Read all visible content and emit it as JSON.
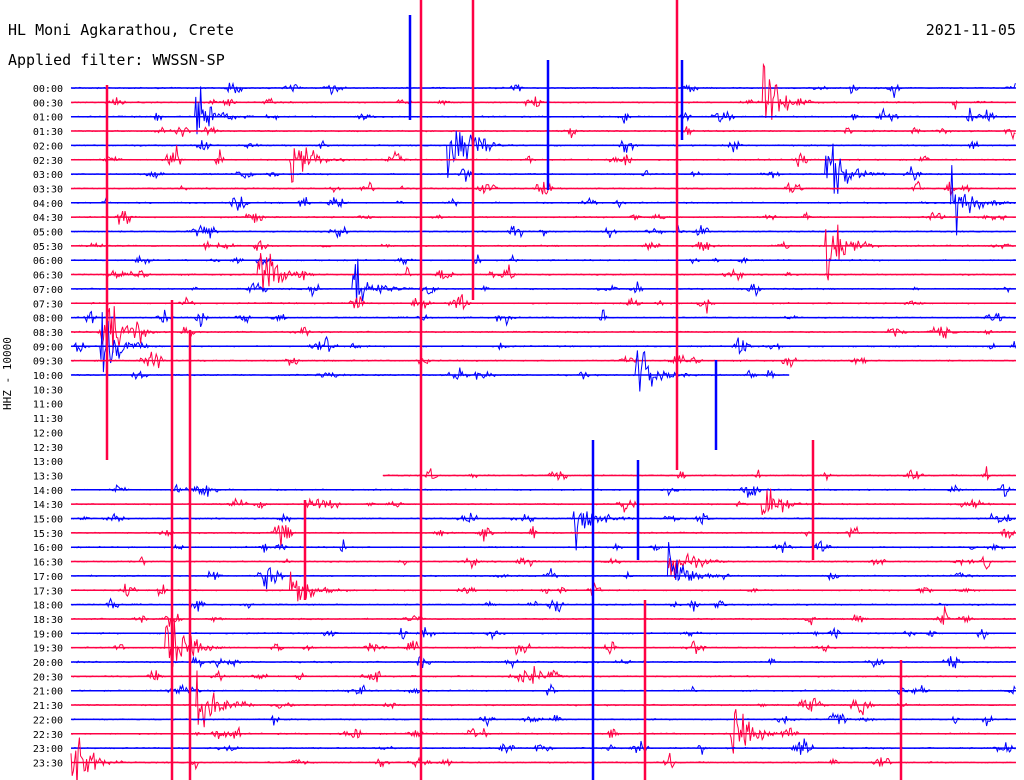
{
  "header": {
    "station": "HL Moni Agkarathou, Crete",
    "filter": "Applied filter: WWSSN-SP",
    "date": "2021-11-05"
  },
  "chart_data": {
    "type": "line",
    "title": "HL Moni Agkarathou, Crete",
    "subtitle": "Applied filter: WWSSN-SP",
    "date": "2021-11-05",
    "ylabel": "HHZ - 10000",
    "row_labels": [
      "00:00",
      "00:30",
      "01:00",
      "01:30",
      "02:00",
      "02:30",
      "03:00",
      "03:30",
      "04:00",
      "04:30",
      "05:00",
      "05:30",
      "06:00",
      "06:30",
      "07:00",
      "07:30",
      "08:00",
      "08:30",
      "09:00",
      "09:30",
      "10:00",
      "10:30",
      "11:00",
      "11:30",
      "12:00",
      "12:30",
      "13:00",
      "13:30",
      "14:00",
      "14:30",
      "15:00",
      "15:30",
      "16:00",
      "16:30",
      "17:00",
      "17:30",
      "18:00",
      "18:30",
      "19:00",
      "19:30",
      "20:00",
      "20:30",
      "21:00",
      "21:30",
      "22:00",
      "22:30",
      "23:00",
      "23:30"
    ],
    "row_colors": [
      "#0000ff",
      "#ff0044"
    ],
    "data_gap": {
      "from": "10:00",
      "to": "13:30"
    },
    "events": [
      {
        "row": "00:30",
        "minute": 22,
        "amplitude": 0.9
      },
      {
        "row": "01:00",
        "minute": 4,
        "amplitude": 0.7
      },
      {
        "row": "02:00",
        "minute": 12,
        "amplitude": 1.0
      },
      {
        "row": "02:30",
        "minute": 7,
        "amplitude": 0.8
      },
      {
        "row": "03:00",
        "minute": 24,
        "amplitude": 0.9
      },
      {
        "row": "04:00",
        "minute": 28,
        "amplitude": 0.9
      },
      {
        "row": "05:30",
        "minute": 24,
        "amplitude": 1.0
      },
      {
        "row": "06:30",
        "minute": 6,
        "amplitude": 0.7
      },
      {
        "row": "07:00",
        "minute": 9,
        "amplitude": 0.6
      },
      {
        "row": "08:30",
        "minute": 1,
        "amplitude": 1.0
      },
      {
        "row": "09:00",
        "minute": 1,
        "amplitude": 0.8
      },
      {
        "row": "10:00",
        "minute": 18,
        "amplitude": 0.7
      },
      {
        "row": "14:30",
        "minute": 22,
        "amplitude": 0.6
      },
      {
        "row": "15:00",
        "minute": 16,
        "amplitude": 0.8
      },
      {
        "row": "16:30",
        "minute": 19,
        "amplitude": 0.7
      },
      {
        "row": "17:00",
        "minute": 19,
        "amplitude": 0.8
      },
      {
        "row": "17:30",
        "minute": 7,
        "amplitude": 0.6
      },
      {
        "row": "19:30",
        "minute": 3,
        "amplitude": 1.0
      },
      {
        "row": "21:30",
        "minute": 4,
        "amplitude": 0.8
      },
      {
        "row": "22:30",
        "minute": 21,
        "amplitude": 0.8
      },
      {
        "row": "23:30",
        "minute": 0,
        "amplitude": 0.7
      }
    ],
    "grid": false
  }
}
